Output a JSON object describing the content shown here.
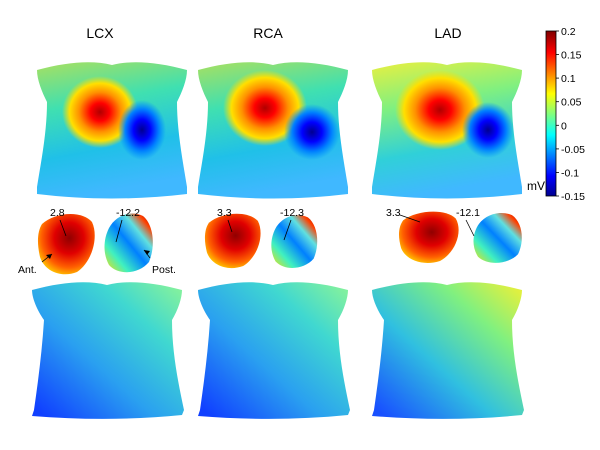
{
  "columns": [
    {
      "title": "LCX",
      "max_label": "2.8",
      "min_label": "-12.2"
    },
    {
      "title": "RCA",
      "max_label": "3.3",
      "min_label": "-12.3"
    },
    {
      "title": "LAD",
      "max_label": "3.3",
      "min_label": "-12.1"
    }
  ],
  "annotations": {
    "anterior": "Ant.",
    "posterior": "Post."
  },
  "colorbar": {
    "unit": "mV",
    "ticks": [
      "0.2",
      "0.15",
      "0.1",
      "0.05",
      "0",
      "-0.05",
      "-0.1",
      "-0.15"
    ],
    "colormap": [
      "#00008f",
      "#0000ff",
      "#00ffff",
      "#ffff00",
      "#ff0000",
      "#800000"
    ]
  }
}
